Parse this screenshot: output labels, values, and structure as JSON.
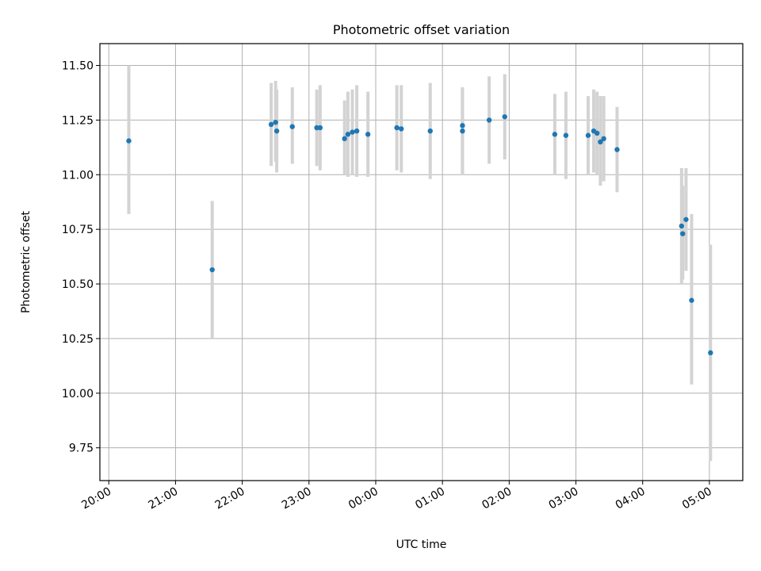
{
  "chart_data": {
    "type": "scatter",
    "title": "Photometric offset variation",
    "xlabel": "UTC time",
    "ylabel": "Photometric offset",
    "grid": true,
    "x_axis": {
      "kind": "time",
      "range": [
        "19:52",
        "05:30"
      ],
      "ticks": [
        "20:00",
        "21:00",
        "22:00",
        "23:00",
        "00:00",
        "01:00",
        "02:00",
        "03:00",
        "04:00",
        "05:00"
      ]
    },
    "y_axis": {
      "range": [
        9.6,
        11.6
      ],
      "ticks": [
        "9.75",
        "10.00",
        "10.25",
        "10.50",
        "10.75",
        "11.00",
        "11.25",
        "11.50"
      ],
      "tick_values": [
        9.75,
        10.0,
        10.25,
        10.5,
        10.75,
        11.0,
        11.25,
        11.5
      ]
    },
    "colors": {
      "point": "#1f77b4",
      "errorbar": "#d3d3d3",
      "grid": "#b0b0b0"
    },
    "points": [
      {
        "t": "20:18",
        "y": 11.155,
        "lo": 10.82,
        "hi": 11.5
      },
      {
        "t": "21:33",
        "y": 10.565,
        "lo": 10.25,
        "hi": 10.88
      },
      {
        "t": "22:26",
        "y": 11.23,
        "lo": 11.04,
        "hi": 11.42
      },
      {
        "t": "22:30",
        "y": 11.24,
        "lo": 11.06,
        "hi": 11.43
      },
      {
        "t": "22:31",
        "y": 11.2,
        "lo": 11.01,
        "hi": 11.39
      },
      {
        "t": "22:45",
        "y": 11.22,
        "lo": 11.05,
        "hi": 11.4
      },
      {
        "t": "23:07",
        "y": 11.215,
        "lo": 11.04,
        "hi": 11.39
      },
      {
        "t": "23:10",
        "y": 11.215,
        "lo": 11.02,
        "hi": 11.41
      },
      {
        "t": "23:32",
        "y": 11.165,
        "lo": 11.0,
        "hi": 11.34
      },
      {
        "t": "23:35",
        "y": 11.185,
        "lo": 10.99,
        "hi": 11.38
      },
      {
        "t": "23:39",
        "y": 11.195,
        "lo": 11.0,
        "hi": 11.39
      },
      {
        "t": "23:43",
        "y": 11.2,
        "lo": 10.99,
        "hi": 11.41
      },
      {
        "t": "23:53",
        "y": 11.185,
        "lo": 10.99,
        "hi": 11.38
      },
      {
        "t": "00:19",
        "y": 11.215,
        "lo": 11.02,
        "hi": 11.41
      },
      {
        "t": "00:23",
        "y": 11.21,
        "lo": 11.01,
        "hi": 11.41
      },
      {
        "t": "00:49",
        "y": 11.2,
        "lo": 10.98,
        "hi": 11.42
      },
      {
        "t": "01:18",
        "y": 11.225,
        "lo": 11.0,
        "hi": 11.4
      },
      {
        "t": "01:18",
        "y": 11.2,
        "lo": 11.0,
        "hi": 11.4
      },
      {
        "t": "01:42",
        "y": 11.25,
        "lo": 11.05,
        "hi": 11.45
      },
      {
        "t": "01:56",
        "y": 11.265,
        "lo": 11.07,
        "hi": 11.46
      },
      {
        "t": "02:41",
        "y": 11.185,
        "lo": 11.0,
        "hi": 11.37
      },
      {
        "t": "02:51",
        "y": 11.18,
        "lo": 10.98,
        "hi": 11.38
      },
      {
        "t": "03:11",
        "y": 11.18,
        "lo": 11.0,
        "hi": 11.36
      },
      {
        "t": "03:16",
        "y": 11.2,
        "lo": 11.01,
        "hi": 11.39
      },
      {
        "t": "03:19",
        "y": 11.19,
        "lo": 11.0,
        "hi": 11.38
      },
      {
        "t": "03:22",
        "y": 11.15,
        "lo": 10.95,
        "hi": 11.36
      },
      {
        "t": "03:25",
        "y": 11.165,
        "lo": 10.97,
        "hi": 11.36
      },
      {
        "t": "03:37",
        "y": 11.115,
        "lo": 10.92,
        "hi": 11.31
      },
      {
        "t": "04:35",
        "y": 10.765,
        "lo": 10.5,
        "hi": 11.03
      },
      {
        "t": "04:36",
        "y": 10.73,
        "lo": 10.52,
        "hi": 10.95
      },
      {
        "t": "04:39",
        "y": 10.795,
        "lo": 10.56,
        "hi": 11.03
      },
      {
        "t": "04:44",
        "y": 10.425,
        "lo": 10.04,
        "hi": 10.82
      },
      {
        "t": "05:01",
        "y": 10.185,
        "lo": 9.69,
        "hi": 10.68
      }
    ]
  }
}
